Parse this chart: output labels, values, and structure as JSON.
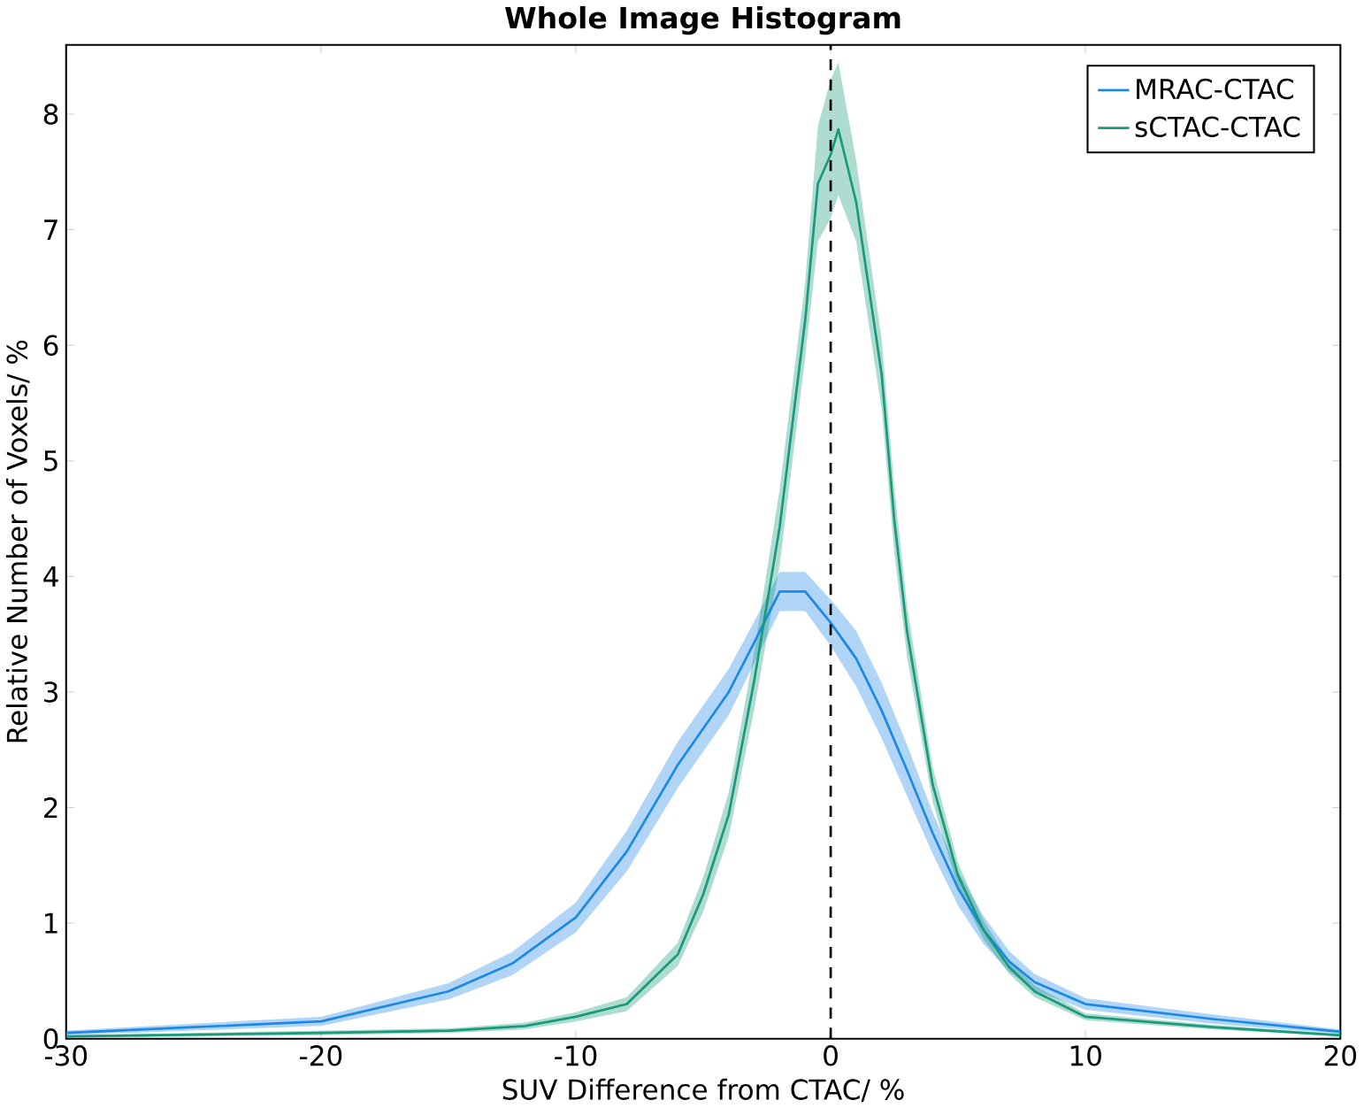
{
  "chart_data": {
    "type": "line",
    "title": "Whole Image Histogram",
    "xlabel": "SUV Difference from CTAC/ %",
    "ylabel": "Relative Number of Voxels/ %",
    "xlim": [
      -30,
      20
    ],
    "ylim": [
      0,
      8.6
    ],
    "xticks": [
      -30,
      -20,
      -10,
      0,
      10,
      20
    ],
    "yticks": [
      0,
      1,
      2,
      3,
      4,
      5,
      6,
      7,
      8
    ],
    "legend": "top right",
    "grid": false,
    "marker": "none",
    "line_style": "solid",
    "ref_lines": [
      {
        "axis": "x",
        "value": 0,
        "color": "#000000",
        "line_style": "dashed"
      }
    ],
    "series": [
      {
        "name": "MRAC-CTAC",
        "color": "#1e88e5",
        "x": [
          -30,
          -25,
          -20,
          -15,
          -12.5,
          -10,
          -8,
          -6,
          -4,
          -3,
          -2,
          -1,
          0,
          1,
          2,
          3,
          4,
          5,
          6,
          7,
          8,
          10,
          15,
          20
        ],
        "values": [
          0.05,
          0.1,
          0.15,
          0.41,
          0.65,
          1.05,
          1.62,
          2.37,
          3.0,
          3.43,
          3.87,
          3.87,
          3.6,
          3.29,
          2.84,
          2.32,
          1.78,
          1.3,
          0.94,
          0.67,
          0.49,
          0.3,
          0.17,
          0.06
        ],
        "lower": [
          0.03,
          0.07,
          0.11,
          0.34,
          0.55,
          0.92,
          1.45,
          2.17,
          2.8,
          3.25,
          3.7,
          3.7,
          3.4,
          3.05,
          2.6,
          2.1,
          1.6,
          1.15,
          0.82,
          0.58,
          0.42,
          0.25,
          0.13,
          0.04
        ],
        "upper": [
          0.07,
          0.13,
          0.19,
          0.48,
          0.75,
          1.18,
          1.8,
          2.57,
          3.2,
          3.61,
          4.04,
          4.04,
          3.8,
          3.53,
          3.08,
          2.54,
          1.96,
          1.45,
          1.06,
          0.76,
          0.56,
          0.35,
          0.21,
          0.08
        ]
      },
      {
        "name": "sCTAC-CTAC",
        "color": "#1a9a7a",
        "x": [
          -30,
          -20,
          -15,
          -12,
          -10,
          -8,
          -6,
          -5,
          -4,
          -3,
          -2,
          -1,
          -0.5,
          0,
          0.3,
          1,
          2,
          2.5,
          3,
          4,
          5,
          6,
          7,
          8,
          10,
          15,
          20
        ],
        "values": [
          0.02,
          0.05,
          0.07,
          0.11,
          0.19,
          0.3,
          0.73,
          1.25,
          1.94,
          3.1,
          4.43,
          6.22,
          7.4,
          7.65,
          7.87,
          7.24,
          5.75,
          4.48,
          3.52,
          2.2,
          1.41,
          0.94,
          0.62,
          0.41,
          0.19,
          0.1,
          0.03
        ],
        "lower": [
          0.01,
          0.03,
          0.05,
          0.08,
          0.15,
          0.24,
          0.63,
          1.1,
          1.75,
          2.85,
          4.1,
          5.9,
          6.9,
          7.1,
          7.3,
          6.9,
          5.45,
          4.2,
          3.3,
          2.05,
          1.3,
          0.86,
          0.56,
          0.36,
          0.16,
          0.08,
          0.02
        ],
        "upper": [
          0.03,
          0.07,
          0.09,
          0.14,
          0.23,
          0.36,
          0.83,
          1.4,
          2.13,
          3.35,
          4.76,
          6.55,
          7.9,
          8.3,
          8.45,
          7.6,
          6.05,
          4.76,
          3.74,
          2.35,
          1.52,
          1.02,
          0.68,
          0.46,
          0.22,
          0.12,
          0.04
        ]
      }
    ]
  }
}
